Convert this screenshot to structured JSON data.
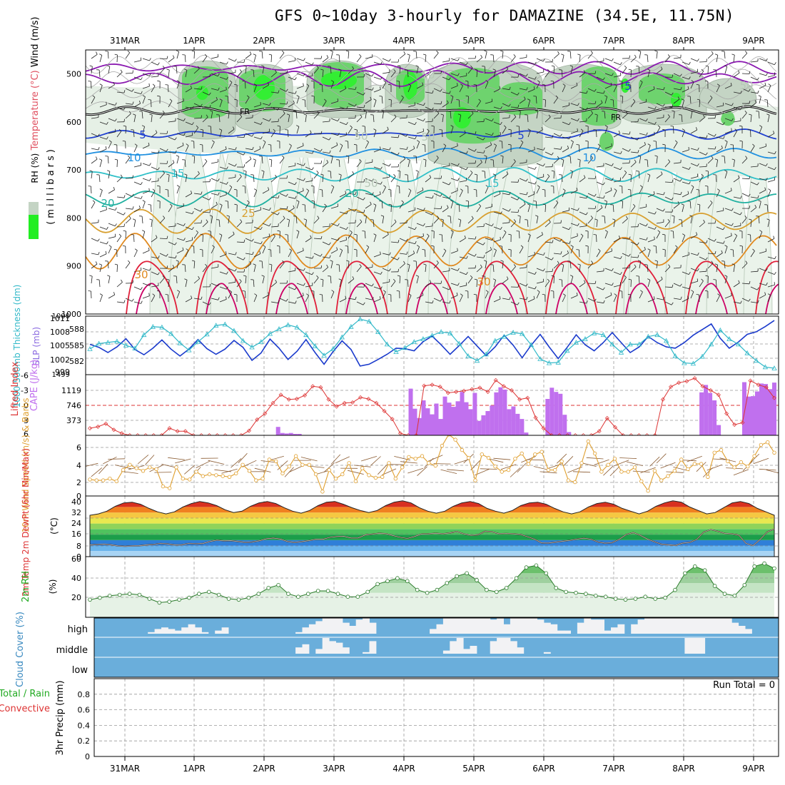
{
  "title": "GFS 0~10day 3-hourly for DAMAZINE (34.5E, 11.75N)",
  "colors": {
    "temp_warm": "#e0203a",
    "temp_hot": "#cc0066",
    "temp_orange": "#e08a20",
    "temp_gold": "#d8a030",
    "temp_teal": "#20b0a0",
    "temp_cyan": "#30c0c8",
    "temp_sky": "#2090e0",
    "temp_blue": "#2040d0",
    "temp_purple": "#8a18b0",
    "rh_green": "#44cc44",
    "rh_bright": "#22ee22",
    "rh_gray": "#b8c8b8",
    "slp": "#1a3acc",
    "thickness": "#30b8c8",
    "cape": "#c070ee",
    "lifted": "#dd3333",
    "wind": "#e0a030",
    "barb": "#8a5a30",
    "cloud": "#6aaedb",
    "cloud_white": "#f2f2f4",
    "rh2m": "#44aa44"
  },
  "dates": [
    "31MAR",
    "1APR",
    "2APR",
    "3APR",
    "4APR",
    "5APR",
    "6APR",
    "7APR",
    "8APR",
    "9APR"
  ],
  "chart_data": [
    {
      "type": "contour",
      "name": "upper-air",
      "ylabel_parts": [
        "RH (%)",
        "Temperature (°C)",
        "Wind (m/s)"
      ],
      "ylabel_axis": "(millibars)",
      "yticks": [
        "500",
        "600",
        "700",
        "800",
        "900",
        "1000"
      ],
      "ylim": [
        450,
        1000
      ],
      "freezing_label": "FR",
      "contour_labels": [
        {
          "label": "5",
          "color": "temp_blue",
          "level": 5
        },
        {
          "label": "10",
          "color": "temp_sky",
          "level": 10
        },
        {
          "label": "15",
          "color": "temp_cyan",
          "level": 15
        },
        {
          "label": "20",
          "color": "temp_teal",
          "level": 20
        },
        {
          "label": "25",
          "color": "temp_gold",
          "level": 25
        },
        {
          "label": "30",
          "color": "temp_orange",
          "level": 30
        },
        {
          "label": "50",
          "color": "rh_gray",
          "level": 50
        }
      ]
    },
    {
      "type": "line",
      "name": "slp-thickness",
      "ylabel": "1000-500mb Thickness (dm)",
      "ylabel2": "SLP (mb)",
      "yticks_left": [
        "588",
        "585",
        "582"
      ],
      "yticks_right": [
        "1011",
        "1008",
        "1005",
        "1002",
        "999"
      ],
      "edge_labels": [
        "1000",
        "1499"
      ],
      "series": [
        {
          "name": "SLP",
          "values": [
            1005.5,
            1004.8,
            1003.6,
            1004.9,
            1006.8,
            1004.3,
            1003.1,
            1004.6,
            1006.5,
            1004.4,
            1002.8,
            1004.4,
            1006.6,
            1004.5,
            1003.2,
            1004.4,
            1006.4,
            1004.8,
            1001.8,
            1003.5,
            1006.7,
            1004.6,
            1002.0,
            1003.9,
            1006.6,
            1003.6,
            1000.9,
            1003.8,
            1006.3,
            1004.3,
            1000.5,
            1000.9,
            1002.0,
            1003.2,
            1004.6,
            1004.5,
            1004.0,
            1006.1,
            1007.4,
            1005.4,
            1003.2,
            1005.2,
            1007.3,
            1005.1,
            1002.9,
            1004.9,
            1007.6,
            1005.3,
            1002.4,
            1005.3,
            1007.8,
            1004.9,
            1002.2,
            1004.8,
            1007.7,
            1005.4,
            1004.0,
            1005.9,
            1008.2,
            1005.9,
            1003.6,
            1004.9,
            1007.3,
            1005.9,
            1004.9,
            1004.6,
            1005.9,
            1007.6,
            1008.9,
            1010.2,
            1006.9,
            1004.6,
            1006.0,
            1007.8,
            1008.4,
            1009.6,
            1011.0
          ]
        },
        {
          "name": "Thickness",
          "values": [
            583.9,
            584.8,
            585.0,
            585.2,
            584.5,
            584.0,
            586.3,
            587.7,
            587.6,
            586.5,
            584.9,
            583.7,
            585.1,
            586.4,
            587.9,
            588.1,
            587.0,
            585.3,
            584.2,
            585.1,
            586.5,
            587.3,
            588.0,
            587.6,
            586.3,
            584.4,
            582.8,
            583.9,
            585.9,
            587.7,
            589.0,
            588.6,
            586.8,
            584.7,
            583.4,
            584.1,
            585.1,
            585.6,
            586.2,
            586.8,
            586.6,
            584.8,
            582.7,
            581.9,
            583.0,
            585.3,
            586.0,
            586.7,
            586.5,
            584.6,
            582.2,
            581.5,
            581.6,
            583.6,
            585.0,
            585.6,
            586.6,
            586.3,
            584.7,
            583.3,
            584.7,
            584.7,
            586.0,
            586.3,
            585.3,
            582.7,
            581.5,
            581.4,
            582.6,
            584.7,
            587.1,
            585.6,
            584.7,
            583.2,
            581.9,
            580.8,
            580.6
          ]
        }
      ]
    },
    {
      "type": "bar+line",
      "name": "cape-li",
      "ylabel": "Lifted Index",
      "ylabel2": "CAPE (J/kg)",
      "yticks_left": [
        "-6",
        "-3",
        "0",
        "3",
        "6"
      ],
      "yticks_right": [
        "1119",
        "746",
        "373"
      ],
      "lifted_index": [
        4.6,
        4.3,
        3.7,
        4.9,
        5.6,
        6.0,
        6.0,
        6.0,
        6.0,
        6.0,
        4.6,
        5.2,
        5.2,
        6.0,
        6.0,
        6.0,
        6.0,
        6.0,
        6.0,
        6.0,
        5.1,
        2.9,
        1.7,
        -0.4,
        -2.0,
        -1.1,
        -1.2,
        -1.9,
        -3.7,
        -3.5,
        -1.1,
        0.3,
        -0.4,
        -0.5,
        -1.5,
        -1.2,
        -0.4,
        1.2,
        2.8,
        5.6,
        6.0,
        6.0,
        -3.8,
        -4.0,
        -3.6,
        -2.4,
        -2.6,
        -2.8,
        -3.1,
        -3.4,
        -2.6,
        -4.9,
        -3.7,
        -2.9,
        -1.1,
        -1.4,
        2.5,
        4.6,
        6.0,
        6.0,
        6.0,
        6.0,
        6.0,
        6.0,
        5.2,
        2.6,
        4.4,
        6.0,
        6.0,
        6.0,
        6.0,
        6.0,
        -1.1,
        -3.6,
        -4.4,
        -4.7,
        -5.3,
        -3.7,
        -2.9,
        -2.0,
        1.7,
        3.9,
        3.5,
        -4.8,
        -4.0,
        -3.5,
        -1.4
      ],
      "cape_bars": [
        0,
        0,
        0,
        0,
        0,
        0,
        0,
        0,
        0,
        0,
        0,
        0,
        0,
        0,
        0,
        0,
        0,
        0,
        0,
        0,
        0,
        0,
        0,
        0,
        0,
        0,
        0,
        0,
        0,
        0,
        0,
        0,
        0,
        0,
        0,
        0,
        0,
        0,
        0,
        0,
        0,
        0,
        0,
        0,
        180,
        50,
        40,
        50,
        30,
        30,
        0,
        0,
        0,
        0,
        0,
        0,
        0,
        0,
        0,
        0,
        0,
        0,
        0,
        0,
        0,
        0,
        0,
        0,
        0,
        0,
        0,
        0,
        0,
        0,
        0,
        1000,
        570,
        370,
        750,
        580,
        450,
        680,
        350,
        830,
        700,
        610,
        730,
        930,
        710,
        560,
        910,
        310,
        430,
        520,
        640,
        920,
        1030,
        980,
        560,
        620,
        460,
        350,
        60,
        0,
        0,
        0,
        0,
        780,
        1020,
        930,
        890,
        440,
        70,
        0,
        0,
        0,
        0,
        0,
        0,
        0,
        0,
        0,
        0,
        0,
        0,
        0,
        0,
        0,
        0,
        0,
        0,
        0,
        0,
        0,
        0,
        0,
        0,
        0,
        0,
        0,
        0,
        0,
        0,
        920,
        1080,
        910,
        750,
        220,
        0,
        0,
        0,
        0,
        0,
        1140,
        830,
        840,
        940,
        1110,
        1100,
        990,
        1130
      ]
    },
    {
      "type": "line",
      "name": "wind10m",
      "ylabel": "10m Wind Speed (m/s) & Barbs",
      "yticks": [
        "6",
        "4",
        "2",
        "0"
      ],
      "ylim": [
        0,
        7
      ],
      "values": [
        1.9,
        1.8,
        1.8,
        2.0,
        1.7,
        3.0,
        3.6,
        3.2,
        2.9,
        3.3,
        3.1,
        1.1,
        0.9,
        3.3,
        2.0,
        1.9,
        2.8,
        2.3,
        2.5,
        2.4,
        2.3,
        2.2,
        2.6,
        3.6,
        2.9,
        1.8,
        2.0,
        4.2,
        4.0,
        2.6,
        3.4,
        4.6,
        3.6,
        3.6,
        2.5,
        0.5,
        3.0,
        2.0,
        2.5,
        3.8,
        1.7,
        3.2,
        2.4,
        2.1,
        2.2,
        3.8,
        2.0,
        3.3,
        4.5,
        4.3,
        4.6,
        3.8,
        3.5,
        5.8,
        7.1,
        6.5,
        5.3,
        4.4,
        1.8,
        4.8,
        4.4,
        3.4,
        2.8,
        3.0,
        4.3,
        4.9,
        3.7,
        4.8,
        5.1,
        3.0,
        3.0,
        4.0,
        1.8,
        1.6,
        3.8,
        6.3,
        4.9,
        2.8,
        3.6,
        4.3,
        2.8,
        2.8,
        3.3,
        1.7,
        0.6,
        2.9,
        1.8,
        2.3,
        2.9,
        4.2,
        3.1,
        3.7,
        3.7,
        2.2,
        5.0,
        5.3,
        4.0,
        3.3,
        3.9,
        3.4,
        4.6,
        5.9,
        6.2,
        5.0
      ]
    },
    {
      "type": "area",
      "name": "temp2m",
      "ylabel": "2m Temp 2m DewPt (6hr Min/Max)",
      "ylabel_unit": "(°C)",
      "yticks": [
        "40",
        "32",
        "24",
        "16",
        "8",
        "0"
      ],
      "ylim": [
        0,
        44
      ],
      "temp": [
        30.0,
        31.0,
        33.0,
        36.5,
        39.0,
        39.5,
        38.0,
        35.0,
        32.5,
        31.0,
        32.5,
        36.0,
        38.5,
        40.0,
        39.0,
        37.0,
        34.0,
        32.0,
        33.0,
        36.5,
        39.0,
        40.0,
        38.5,
        35.5,
        33.0,
        31.5,
        33.5,
        37.0,
        39.5,
        40.0,
        38.0,
        35.5,
        33.5,
        32.0,
        33.5,
        37.0,
        39.5,
        40.5,
        39.0,
        35.5,
        33.0,
        31.5,
        33.0,
        36.5,
        39.0,
        40.0,
        38.5,
        35.0,
        33.0,
        31.5,
        33.5,
        37.0,
        39.0,
        39.5,
        38.0,
        35.0,
        32.5,
        31.0,
        32.5,
        36.0,
        38.5,
        39.5,
        38.0,
        35.0,
        33.0,
        31.0,
        33.0,
        36.5,
        39.0,
        40.5,
        39.5,
        36.0,
        33.5,
        31.0,
        32.0,
        35.5,
        39.0,
        40.0,
        38.5,
        35.0,
        32.5,
        30.0
      ],
      "dewpoint": [
        8.5,
        8.8,
        9.0,
        8.6,
        7.8,
        7.5,
        7.8,
        7.9,
        8.5,
        8.8,
        9.6,
        9.2,
        8.5,
        8.6,
        9.6,
        9.3,
        9.5,
        11.0,
        12.0,
        11.5,
        11.6,
        11.0,
        10.4,
        10.6,
        11.5,
        13.0,
        13.5,
        12.8,
        11.0,
        10.3,
        10.8,
        11.6,
        12.6,
        12.6,
        14.0,
        14.6,
        14.8,
        13.5,
        13.5,
        15.7,
        16.3,
        17.0,
        16.6,
        15.2,
        14.0,
        13.2,
        14.6,
        16.4,
        16.5,
        17.0,
        16.5,
        17.2,
        18.2,
        16.5,
        15.5,
        15.8,
        18.4,
        18.0,
        16.6,
        16.8,
        16.5,
        16.1,
        14.5,
        12.7,
        10.0,
        9.9,
        10.5,
        11.2,
        11.8,
        12.7,
        13.4,
        12.7,
        10.6,
        9.8,
        10.1,
        12.5,
        16.0,
        17.5,
        15.5,
        12.8,
        10.8,
        9.0,
        8.6,
        8.2,
        9.8,
        10.3,
        12.5,
        17.8,
        19.6,
        18.4,
        16.9,
        16.5,
        15.5,
        9.5,
        8.0,
        12.5,
        18.0,
        20.0
      ]
    },
    {
      "type": "area",
      "name": "rh2m",
      "ylabel": "2m RH",
      "ylabel_unit": "(%)",
      "yticks": [
        "60",
        "40",
        "20"
      ],
      "ylim": [
        0,
        62
      ],
      "values": [
        18,
        20,
        22,
        23,
        24,
        23,
        19,
        15,
        16,
        18,
        20,
        24,
        26,
        23,
        19,
        18,
        20,
        24,
        30,
        33,
        24,
        21,
        24,
        27,
        27,
        24,
        21,
        21,
        26,
        34,
        37,
        40,
        37,
        28,
        25,
        28,
        35,
        42,
        45,
        38,
        28,
        26,
        30,
        40,
        51,
        53,
        45,
        30,
        26,
        25,
        24,
        22,
        21,
        19,
        18,
        19,
        21,
        19,
        20,
        28,
        45,
        52,
        48,
        32,
        24,
        22,
        33,
        52,
        55,
        50
      ]
    },
    {
      "type": "bar",
      "name": "cloud",
      "ylabel": "Cloud Cover (%)",
      "levels": [
        "high",
        "middle",
        "low"
      ],
      "high_white": [
        0,
        0,
        0,
        0,
        0,
        0,
        0,
        0,
        10,
        30,
        40,
        30,
        20,
        40,
        60,
        40,
        10,
        0,
        20,
        40,
        0,
        0,
        0,
        0,
        0,
        0,
        0,
        0,
        0,
        0,
        10,
        40,
        60,
        80,
        100,
        100,
        100,
        70,
        50,
        90,
        100,
        70,
        0,
        0,
        0,
        0,
        0,
        0,
        0,
        0,
        30,
        60,
        100,
        100,
        100,
        100,
        100,
        100,
        100,
        90,
        100,
        60,
        100,
        100,
        100,
        100,
        90,
        70,
        60,
        20,
        20,
        0,
        70,
        100,
        90,
        90,
        20,
        40,
        60,
        0,
        60,
        90,
        100,
        100,
        100,
        100,
        100,
        100,
        100,
        100,
        100,
        100,
        100,
        100,
        100,
        70,
        50,
        30,
        0,
        0,
        0,
        0
      ],
      "mid_white": [
        0,
        0,
        0,
        0,
        0,
        0,
        0,
        0,
        0,
        0,
        0,
        0,
        0,
        0,
        0,
        0,
        0,
        0,
        0,
        0,
        0,
        0,
        0,
        0,
        0,
        0,
        0,
        0,
        0,
        0,
        40,
        60,
        0,
        30,
        100,
        80,
        70,
        40,
        0,
        0,
        10,
        80,
        0,
        0,
        0,
        0,
        0,
        0,
        0,
        0,
        0,
        0,
        20,
        80,
        100,
        30,
        50,
        0,
        0,
        80,
        100,
        100,
        80,
        40,
        0,
        0,
        0,
        10,
        0,
        0,
        0,
        0,
        0,
        0,
        0,
        0,
        0,
        0,
        0,
        0,
        0,
        0,
        0,
        0,
        0,
        0,
        0,
        0,
        100,
        100,
        100,
        0,
        0,
        0,
        0,
        0,
        0,
        0,
        0,
        0,
        0,
        0
      ]
    },
    {
      "type": "bar",
      "name": "precip",
      "ylabel": "3hr Precip (mm)",
      "legend": [
        "Total / Rain",
        "Convective"
      ],
      "yticks": [
        "0.8",
        "0.6",
        "0.4",
        "0.2",
        "0"
      ],
      "ylim": [
        0,
        1
      ],
      "run_total": "Run Total = 0",
      "values": []
    }
  ]
}
